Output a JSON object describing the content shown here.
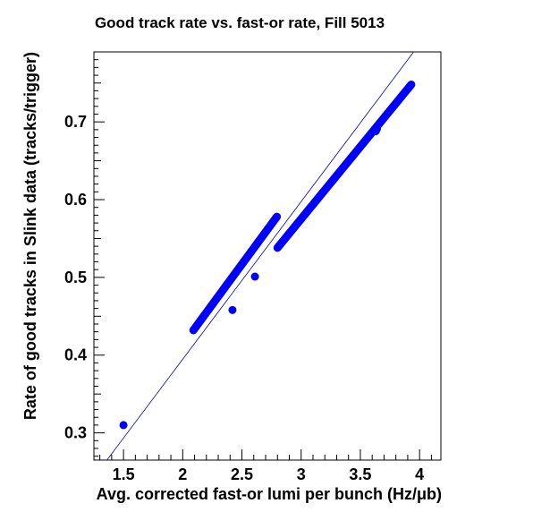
{
  "chart_data": {
    "type": "scatter",
    "title": "Good track rate vs. fast-or rate, Fill 5013",
    "xlabel": "Avg. corrected fast-or lumi per bunch (Hz/μb)",
    "ylabel": "Rate of good tracks in Slink data (tracks/trigger)",
    "xlim": [
      1.25,
      4.18
    ],
    "ylim": [
      0.265,
      0.79
    ],
    "x_ticks_major": [
      1.5,
      2,
      2.5,
      3,
      3.5,
      4
    ],
    "x_tick_labels": [
      "1.5",
      "2",
      "2.5",
      "3",
      "3.5",
      "4"
    ],
    "y_ticks_major": [
      0.3,
      0.4,
      0.5,
      0.6,
      0.7
    ],
    "y_tick_labels": [
      "0.3",
      "0.4",
      "0.5",
      "0.6",
      "0.7"
    ],
    "grid": false,
    "legend": "none",
    "marker_color": "#0000ff",
    "fit_line_color": "#0000aa",
    "fit_line": {
      "x": [
        1.36,
        3.95
      ],
      "y": [
        0.265,
        0.79
      ]
    },
    "series": [
      {
        "segments": [
          {
            "x_start": 2.09,
            "y_start": 0.432,
            "x_end": 2.795,
            "y_end": 0.578,
            "count": 140
          },
          {
            "x_start": 2.8,
            "y_start": 0.538,
            "x_end": 3.93,
            "y_end": 0.748,
            "count": 200
          }
        ],
        "points": [
          {
            "x": 1.5,
            "y": 0.31
          },
          {
            "x": 2.42,
            "y": 0.458
          },
          {
            "x": 2.61,
            "y": 0.501
          },
          {
            "x": 3.63,
            "y": 0.688
          },
          {
            "x": 3.64,
            "y": 0.691
          }
        ]
      }
    ]
  }
}
